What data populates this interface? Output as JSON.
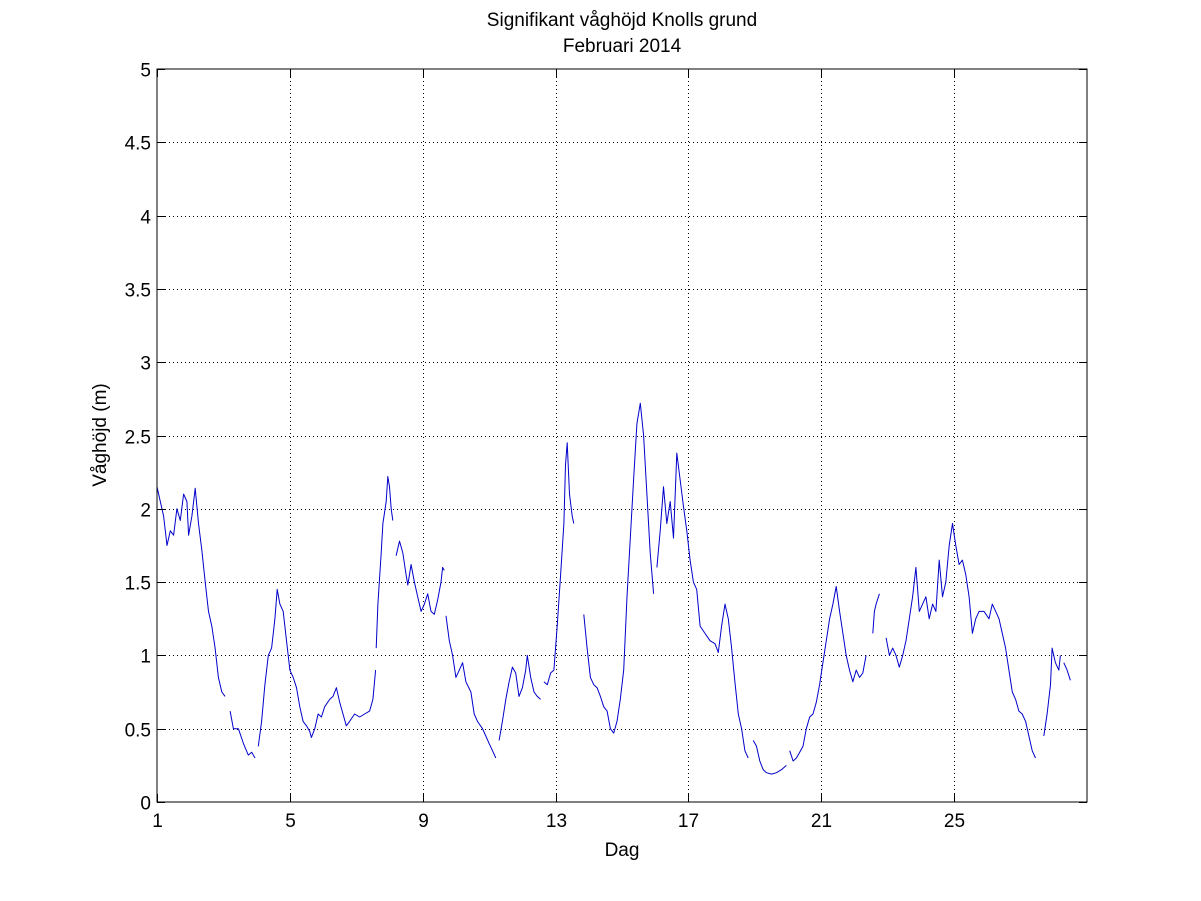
{
  "chart_data": {
    "type": "line",
    "title": "Signifikant våghöjd Knolls grund",
    "subtitle": "Februari 2014",
    "xlabel": "Dag",
    "ylabel": "Våghöjd (m)",
    "xlim": [
      1,
      29
    ],
    "ylim": [
      0,
      5
    ],
    "xticks": [
      1,
      5,
      9,
      13,
      17,
      21,
      25
    ],
    "yticks": [
      0,
      0.5,
      1,
      1.5,
      2,
      2.5,
      3,
      3.5,
      4,
      4.5,
      5
    ],
    "xtick_labels": [
      "1",
      "5",
      "9",
      "13",
      "17",
      "21",
      "25"
    ],
    "ytick_labels": [
      "0",
      "0.5",
      "1",
      "1.5",
      "2",
      "2.5",
      "3",
      "3.5",
      "4",
      "4.5",
      "5"
    ],
    "grid": true,
    "line_color": "#0000cc",
    "series": [
      {
        "segments": [
          [
            [
              1.0,
              2.15
            ],
            [
              1.1,
              2.05
            ],
            [
              1.2,
              1.95
            ],
            [
              1.3,
              1.75
            ],
            [
              1.4,
              1.85
            ],
            [
              1.5,
              1.82
            ],
            [
              1.6,
              2.0
            ],
            [
              1.7,
              1.92
            ],
            [
              1.8,
              2.1
            ],
            [
              1.9,
              2.05
            ],
            [
              1.95,
              1.82
            ],
            [
              2.05,
              1.95
            ],
            [
              2.15,
              2.14
            ],
            [
              2.25,
              1.9
            ],
            [
              2.35,
              1.72
            ],
            [
              2.45,
              1.5
            ],
            [
              2.55,
              1.3
            ],
            [
              2.65,
              1.2
            ],
            [
              2.75,
              1.05
            ],
            [
              2.85,
              0.85
            ],
            [
              2.95,
              0.75
            ],
            [
              3.05,
              0.72
            ]
          ],
          [
            [
              3.2,
              0.62
            ],
            [
              3.3,
              0.5
            ],
            [
              3.45,
              0.5
            ],
            [
              3.6,
              0.4
            ],
            [
              3.75,
              0.32
            ],
            [
              3.85,
              0.34
            ],
            [
              3.95,
              0.3
            ]
          ],
          [
            [
              4.05,
              0.38
            ],
            [
              4.15,
              0.55
            ],
            [
              4.25,
              0.8
            ],
            [
              4.35,
              1.0
            ],
            [
              4.45,
              1.05
            ],
            [
              4.55,
              1.25
            ],
            [
              4.62,
              1.45
            ],
            [
              4.7,
              1.35
            ],
            [
              4.8,
              1.3
            ],
            [
              4.9,
              1.1
            ],
            [
              5.0,
              0.9
            ],
            [
              5.1,
              0.85
            ],
            [
              5.2,
              0.78
            ],
            [
              5.3,
              0.65
            ],
            [
              5.4,
              0.55
            ],
            [
              5.5,
              0.52
            ],
            [
              5.6,
              0.48
            ],
            [
              5.65,
              0.44
            ],
            [
              5.75,
              0.5
            ],
            [
              5.85,
              0.6
            ],
            [
              5.95,
              0.58
            ],
            [
              6.05,
              0.65
            ],
            [
              6.2,
              0.7
            ],
            [
              6.3,
              0.72
            ],
            [
              6.4,
              0.78
            ],
            [
              6.5,
              0.68
            ],
            [
              6.6,
              0.6
            ],
            [
              6.7,
              0.52
            ],
            [
              6.8,
              0.55
            ],
            [
              6.95,
              0.6
            ],
            [
              7.1,
              0.58
            ],
            [
              7.25,
              0.6
            ],
            [
              7.4,
              0.62
            ],
            [
              7.5,
              0.7
            ],
            [
              7.58,
              0.9
            ]
          ],
          [
            [
              7.6,
              1.05
            ],
            [
              7.65,
              1.35
            ],
            [
              7.75,
              1.7
            ],
            [
              7.8,
              1.9
            ],
            [
              7.9,
              2.05
            ],
            [
              7.95,
              2.22
            ],
            [
              8.0,
              2.15
            ],
            [
              8.05,
              2.0
            ],
            [
              8.1,
              1.92
            ]
          ],
          [
            [
              8.2,
              1.68
            ],
            [
              8.3,
              1.78
            ],
            [
              8.4,
              1.7
            ],
            [
              8.5,
              1.55
            ],
            [
              8.55,
              1.48
            ],
            [
              8.65,
              1.62
            ],
            [
              8.75,
              1.5
            ],
            [
              8.85,
              1.4
            ],
            [
              8.95,
              1.3
            ],
            [
              9.05,
              1.35
            ],
            [
              9.15,
              1.42
            ],
            [
              9.25,
              1.3
            ],
            [
              9.35,
              1.28
            ],
            [
              9.45,
              1.38
            ],
            [
              9.55,
              1.5
            ],
            [
              9.6,
              1.6
            ],
            [
              9.65,
              1.58
            ]
          ],
          [
            [
              9.7,
              1.27
            ],
            [
              9.8,
              1.1
            ],
            [
              9.9,
              1.0
            ],
            [
              10.0,
              0.85
            ],
            [
              10.1,
              0.9
            ],
            [
              10.2,
              0.95
            ],
            [
              10.3,
              0.82
            ],
            [
              10.45,
              0.75
            ],
            [
              10.55,
              0.6
            ],
            [
              10.65,
              0.55
            ],
            [
              10.8,
              0.5
            ],
            [
              10.9,
              0.45
            ],
            [
              11.0,
              0.4
            ],
            [
              11.1,
              0.35
            ],
            [
              11.2,
              0.3
            ]
          ],
          [
            [
              11.3,
              0.42
            ],
            [
              11.4,
              0.55
            ],
            [
              11.5,
              0.7
            ],
            [
              11.6,
              0.82
            ],
            [
              11.7,
              0.92
            ],
            [
              11.8,
              0.88
            ],
            [
              11.9,
              0.72
            ],
            [
              12.0,
              0.78
            ],
            [
              12.1,
              0.9
            ],
            [
              12.15,
              1.0
            ],
            [
              12.25,
              0.85
            ],
            [
              12.35,
              0.75
            ],
            [
              12.45,
              0.72
            ],
            [
              12.55,
              0.7
            ]
          ],
          [
            [
              12.65,
              0.82
            ],
            [
              12.75,
              0.8
            ],
            [
              12.85,
              0.88
            ],
            [
              12.95,
              0.9
            ],
            [
              13.05,
              1.2
            ],
            [
              13.15,
              1.55
            ],
            [
              13.25,
              1.9
            ],
            [
              13.3,
              2.3
            ],
            [
              13.35,
              2.45
            ],
            [
              13.42,
              2.1
            ],
            [
              13.5,
              1.95
            ],
            [
              13.55,
              1.9
            ]
          ],
          [
            [
              13.85,
              1.28
            ],
            [
              13.95,
              1.05
            ],
            [
              14.05,
              0.85
            ],
            [
              14.15,
              0.8
            ],
            [
              14.25,
              0.78
            ],
            [
              14.35,
              0.72
            ],
            [
              14.45,
              0.65
            ],
            [
              14.55,
              0.62
            ],
            [
              14.65,
              0.5
            ],
            [
              14.75,
              0.47
            ],
            [
              14.85,
              0.55
            ],
            [
              14.95,
              0.7
            ],
            [
              15.05,
              0.9
            ],
            [
              15.15,
              1.4
            ],
            [
              15.25,
              1.8
            ],
            [
              15.35,
              2.2
            ],
            [
              15.45,
              2.58
            ],
            [
              15.55,
              2.72
            ],
            [
              15.65,
              2.5
            ],
            [
              15.75,
              2.1
            ],
            [
              15.85,
              1.7
            ],
            [
              15.95,
              1.42
            ]
          ],
          [
            [
              16.05,
              1.6
            ],
            [
              16.15,
              1.85
            ],
            [
              16.25,
              2.15
            ],
            [
              16.35,
              1.9
            ],
            [
              16.45,
              2.05
            ],
            [
              16.55,
              1.8
            ],
            [
              16.65,
              2.38
            ],
            [
              16.75,
              2.2
            ],
            [
              16.85,
              2.02
            ],
            [
              16.95,
              1.85
            ],
            [
              17.05,
              1.65
            ],
            [
              17.15,
              1.5
            ],
            [
              17.25,
              1.45
            ],
            [
              17.35,
              1.2
            ],
            [
              17.5,
              1.15
            ],
            [
              17.65,
              1.1
            ],
            [
              17.8,
              1.08
            ],
            [
              17.9,
              1.02
            ],
            [
              18.0,
              1.2
            ],
            [
              18.1,
              1.35
            ],
            [
              18.2,
              1.25
            ],
            [
              18.3,
              1.05
            ],
            [
              18.4,
              0.82
            ],
            [
              18.5,
              0.6
            ],
            [
              18.6,
              0.5
            ],
            [
              18.7,
              0.35
            ],
            [
              18.8,
              0.3
            ]
          ],
          [
            [
              18.95,
              0.42
            ],
            [
              19.05,
              0.38
            ],
            [
              19.15,
              0.28
            ],
            [
              19.25,
              0.22
            ],
            [
              19.35,
              0.2
            ],
            [
              19.5,
              0.19
            ],
            [
              19.65,
              0.2
            ],
            [
              19.8,
              0.22
            ],
            [
              19.95,
              0.25
            ]
          ],
          [
            [
              20.05,
              0.35
            ],
            [
              20.15,
              0.28
            ],
            [
              20.25,
              0.3
            ],
            [
              20.35,
              0.34
            ],
            [
              20.45,
              0.38
            ],
            [
              20.55,
              0.5
            ],
            [
              20.65,
              0.58
            ],
            [
              20.75,
              0.6
            ],
            [
              20.85,
              0.68
            ],
            [
              20.95,
              0.8
            ],
            [
              21.05,
              0.95
            ],
            [
              21.15,
              1.1
            ],
            [
              21.25,
              1.25
            ],
            [
              21.35,
              1.35
            ],
            [
              21.45,
              1.47
            ],
            [
              21.55,
              1.3
            ],
            [
              21.65,
              1.15
            ],
            [
              21.75,
              1.0
            ],
            [
              21.85,
              0.9
            ],
            [
              21.95,
              0.82
            ],
            [
              22.05,
              0.9
            ],
            [
              22.15,
              0.85
            ],
            [
              22.25,
              0.88
            ],
            [
              22.35,
              1.0
            ]
          ],
          [
            [
              22.55,
              1.15
            ],
            [
              22.6,
              1.3
            ],
            [
              22.65,
              1.35
            ],
            [
              22.75,
              1.42
            ]
          ],
          [
            [
              22.95,
              1.12
            ],
            [
              23.05,
              1.0
            ],
            [
              23.15,
              1.05
            ],
            [
              23.25,
              1.0
            ],
            [
              23.35,
              0.92
            ],
            [
              23.45,
              1.0
            ],
            [
              23.55,
              1.1
            ],
            [
              23.65,
              1.25
            ],
            [
              23.75,
              1.4
            ],
            [
              23.85,
              1.6
            ],
            [
              23.95,
              1.3
            ],
            [
              24.05,
              1.35
            ],
            [
              24.15,
              1.4
            ],
            [
              24.25,
              1.25
            ],
            [
              24.35,
              1.35
            ],
            [
              24.45,
              1.3
            ],
            [
              24.55,
              1.65
            ],
            [
              24.65,
              1.4
            ],
            [
              24.75,
              1.5
            ],
            [
              24.85,
              1.75
            ],
            [
              24.95,
              1.9
            ],
            [
              25.05,
              1.75
            ],
            [
              25.15,
              1.62
            ],
            [
              25.25,
              1.65
            ],
            [
              25.35,
              1.55
            ],
            [
              25.45,
              1.4
            ],
            [
              25.55,
              1.15
            ],
            [
              25.65,
              1.25
            ],
            [
              25.75,
              1.3
            ],
            [
              25.9,
              1.3
            ],
            [
              26.05,
              1.25
            ],
            [
              26.15,
              1.35
            ],
            [
              26.25,
              1.3
            ],
            [
              26.35,
              1.25
            ],
            [
              26.45,
              1.15
            ],
            [
              26.55,
              1.05
            ],
            [
              26.65,
              0.9
            ],
            [
              26.75,
              0.75
            ],
            [
              26.85,
              0.7
            ],
            [
              26.95,
              0.62
            ],
            [
              27.05,
              0.6
            ],
            [
              27.15,
              0.55
            ],
            [
              27.25,
              0.45
            ],
            [
              27.35,
              0.35
            ],
            [
              27.45,
              0.3
            ]
          ],
          [
            [
              27.7,
              0.45
            ],
            [
              27.8,
              0.6
            ],
            [
              27.9,
              0.8
            ],
            [
              27.95,
              1.05
            ],
            [
              28.05,
              0.95
            ],
            [
              28.15,
              0.9
            ],
            [
              28.2,
              1.0
            ]
          ],
          [
            [
              28.3,
              0.95
            ],
            [
              28.4,
              0.9
            ],
            [
              28.5,
              0.83
            ]
          ]
        ]
      }
    ]
  }
}
